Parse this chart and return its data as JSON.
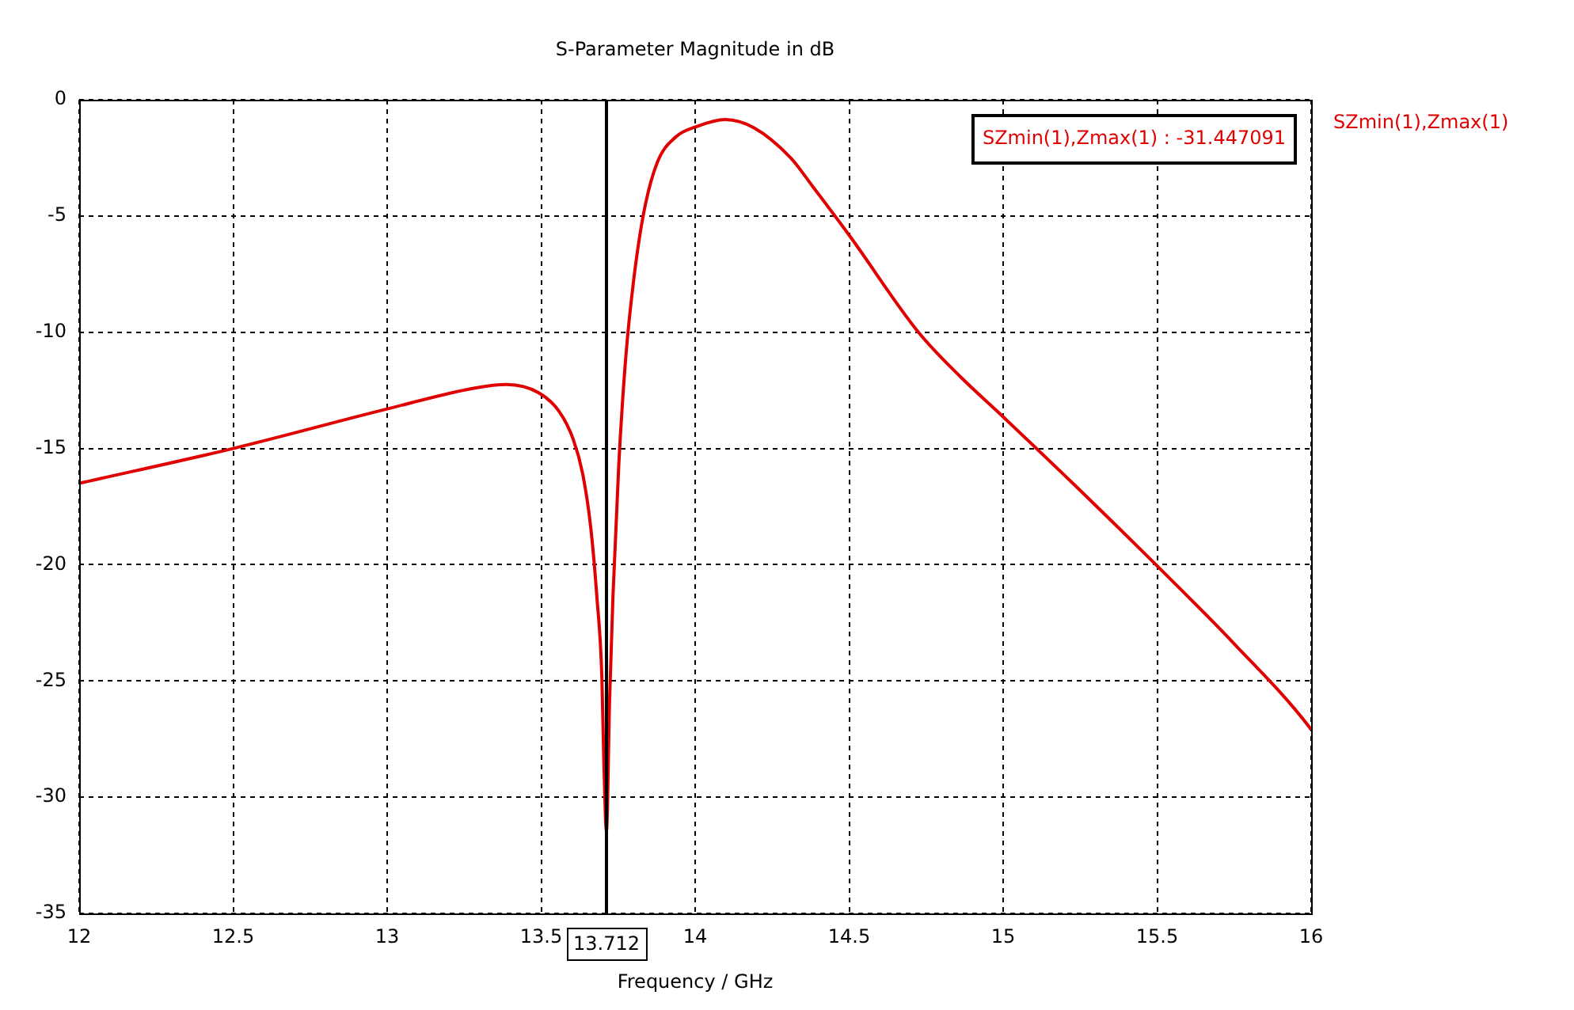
{
  "chart_data": {
    "type": "line",
    "title": "S-Parameter Magnitude in dB",
    "xlabel": "Frequency / GHz",
    "x": [
      12,
      12.5,
      13,
      13.285,
      13.388,
      13.491,
      13.558,
      13.604,
      13.635,
      13.661,
      13.681,
      13.697,
      13.703,
      13.712,
      13.722,
      13.733,
      13.752,
      13.774,
      13.8,
      13.834,
      13.877,
      13.937,
      14.005,
      14.098,
      14.19,
      14.31,
      14.38,
      14.504,
      14.725,
      14.86,
      14.997,
      15.25,
      15.496,
      15.75,
      15.995,
      16
    ],
    "series": [
      {
        "name": "SZmin(1),Zmax(1)",
        "color": "#e00000",
        "values": [
          -16.5,
          -15.0,
          -13.3,
          -12.4,
          -12.25,
          -12.6,
          -13.4,
          -14.6,
          -16.1,
          -18.4,
          -21.4,
          -24.8,
          -28.2,
          -31.447091,
          -25.9,
          -21.4,
          -15.7,
          -11.2,
          -7.8,
          -4.8,
          -2.7,
          -1.6,
          -1.15,
          -0.85,
          -1.2,
          -2.5,
          -3.7,
          -5.9,
          -10.0,
          -11.9,
          -13.6,
          -16.8,
          -20.0,
          -23.4,
          -27.0,
          -27.1
        ]
      }
    ],
    "xlim": [
      12,
      16
    ],
    "xticks": [
      12,
      12.5,
      13,
      13.5,
      14,
      14.5,
      15,
      15.5,
      16
    ],
    "ylim": [
      -35,
      0
    ],
    "yticks": [
      0,
      -5,
      -10,
      -15,
      -20,
      -25,
      -30,
      -35
    ],
    "grid": true,
    "legend": "right",
    "marker": "none",
    "line_style": "solid",
    "ref_lines": [
      {
        "axis": "x",
        "value": 13.712,
        "label": "13.712",
        "color": "#000000"
      }
    ],
    "annotations": [
      "SZmin(1),Zmax(1) : -31.447091"
    ]
  }
}
